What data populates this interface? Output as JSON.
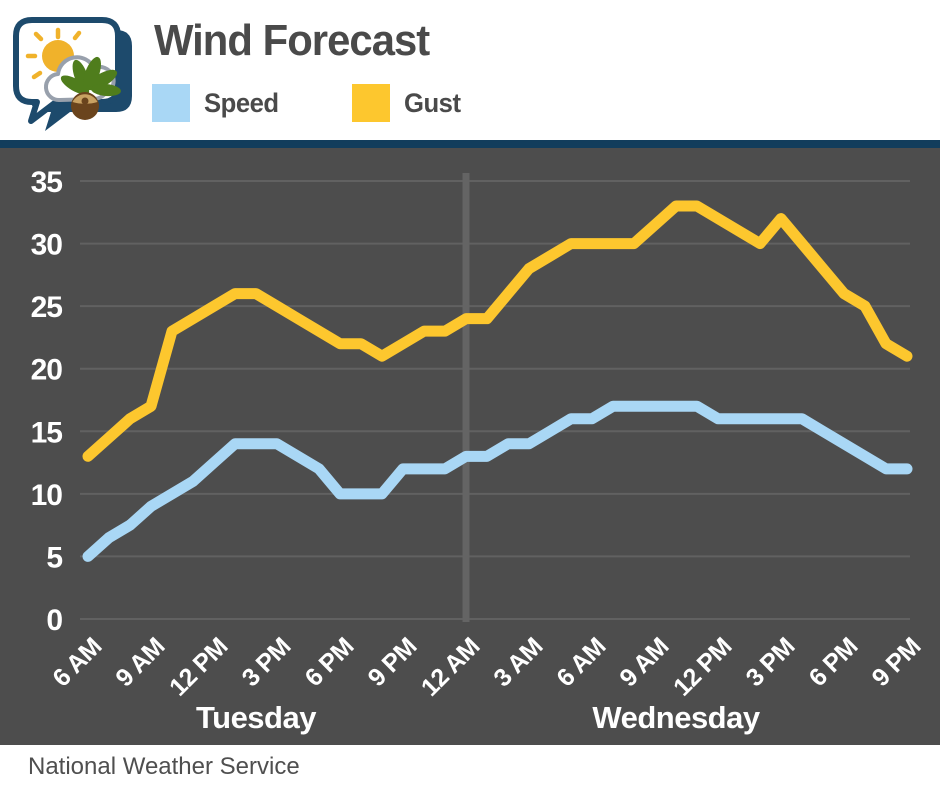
{
  "header": {
    "title": "Wind Forecast",
    "legend": [
      {
        "label": "Speed",
        "color": "#a9d7f5"
      },
      {
        "label": "Gust",
        "color": "#fdc72e"
      }
    ]
  },
  "footer": {
    "attribution": "National Weather Service"
  },
  "colors": {
    "divider_bar": "#123d5c",
    "chart_background": "#4d4d4d",
    "gridline": "#616161",
    "day_separator": "#646464",
    "axis_text": "#ffffff",
    "title_text": "#4a4a4a",
    "speed_line": "#a9d7f5",
    "gust_line": "#fdc72e",
    "logo_navy": "#1d4a6c",
    "logo_sun": "#f0b22b",
    "logo_leaf": "#4f7d1c",
    "logo_nut": "#6a441d"
  },
  "chart_data": {
    "type": "line",
    "title": "Wind Forecast",
    "ylabel": "",
    "xlabel": "",
    "ylim": [
      0,
      35
    ],
    "yticks": [
      0,
      5,
      10,
      15,
      20,
      25,
      30,
      35
    ],
    "grid": true,
    "legend_position": "top",
    "x_unit": "hours from Tuesday 6 AM (hourly points)",
    "xtick_hour_step": 3,
    "xtick_labels": [
      "6 AM",
      "9 AM",
      "12 PM",
      "3 PM",
      "6 PM",
      "9 PM",
      "12 AM",
      "3 AM",
      "6 AM",
      "9 AM",
      "12 PM",
      "3 PM",
      "6 PM",
      "9 PM"
    ],
    "day_labels": [
      {
        "label": "Tuesday",
        "center_hour": 8
      },
      {
        "label": "Wednesday",
        "center_hour": 28
      }
    ],
    "day_separator_hour": 18,
    "series": [
      {
        "name": "Speed",
        "color": "#a9d7f5",
        "values": [
          5,
          6.5,
          7.5,
          9,
          10,
          11,
          12.5,
          14,
          14,
          14,
          13,
          12,
          10,
          10,
          10,
          12,
          12,
          12,
          13,
          13,
          14,
          14,
          15,
          16,
          16,
          17,
          17,
          17,
          17,
          17,
          16,
          16,
          16,
          16,
          16,
          15,
          14,
          13,
          12,
          12
        ]
      },
      {
        "name": "Gust",
        "color": "#fdc72e",
        "values": [
          13,
          14.5,
          16,
          17,
          23,
          24,
          25,
          26,
          26,
          25,
          24,
          23,
          22,
          22,
          21,
          22,
          23,
          23,
          24,
          24,
          26,
          28,
          29,
          30,
          30,
          30,
          30,
          31.5,
          33,
          33,
          32,
          31,
          30,
          32,
          30,
          28,
          26,
          25,
          22,
          21
        ]
      }
    ]
  }
}
